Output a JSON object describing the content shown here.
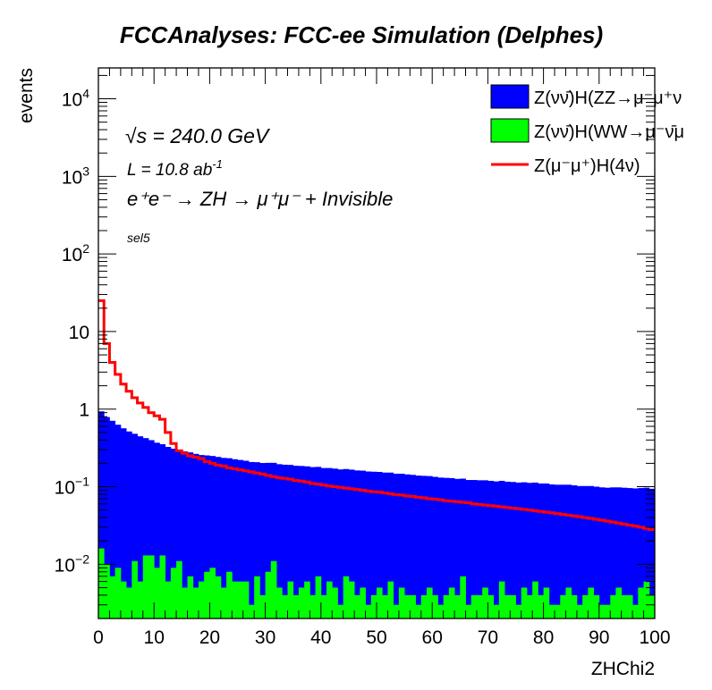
{
  "title": "FCCAnalyses: FCC-ee Simulation (Delphes)",
  "annotations": {
    "sqrt_s_symbol": "√s",
    "sqrt_s_value": " = 240.0 GeV",
    "lumi_text": "L = 10.8 ab",
    "lumi_exp": "-1",
    "process_text": "e⁺e⁻ → ZH → μ⁺μ⁻ + Invisible",
    "selection": "sel5"
  },
  "chart_data": {
    "type": "bar",
    "stacked": true,
    "xlabel": "ZHChi2",
    "ylabel": "events",
    "xlim": [
      0,
      100
    ],
    "ylim": [
      0.002,
      25000
    ],
    "yscale": "log",
    "grid": false,
    "legend_position": "top-right",
    "x_ticks": [
      "0",
      "10",
      "20",
      "30",
      "40",
      "50",
      "60",
      "70",
      "80",
      "90",
      "100"
    ],
    "y_ticks": [
      {
        "base": "10",
        "exp": "−2"
      },
      {
        "base": "10",
        "exp": "−1"
      },
      {
        "base": "1",
        "exp": ""
      },
      {
        "base": "10",
        "exp": ""
      },
      {
        "base": "10",
        "exp": "2"
      },
      {
        "base": "10",
        "exp": "3"
      },
      {
        "base": "10",
        "exp": "4"
      }
    ],
    "bin_width": 1,
    "series": [
      {
        "name": "Z(νν̄)H(ZZ→μ⁻μ⁺ν",
        "kind": "stack",
        "color": "#0000ff",
        "values": [
          0.92,
          0.78,
          0.7,
          0.62,
          0.56,
          0.51,
          0.47,
          0.44,
          0.41,
          0.385,
          0.36,
          0.34,
          0.32,
          0.3,
          0.29,
          0.28,
          0.27,
          0.26,
          0.25,
          0.245,
          0.24,
          0.235,
          0.23,
          0.225,
          0.22,
          0.215,
          0.21,
          0.205,
          0.2,
          0.198,
          0.195,
          0.192,
          0.19,
          0.188,
          0.185,
          0.182,
          0.18,
          0.177,
          0.175,
          0.173,
          0.17,
          0.168,
          0.166,
          0.164,
          0.162,
          0.16,
          0.158,
          0.156,
          0.154,
          0.152,
          0.15,
          0.148,
          0.146,
          0.144,
          0.142,
          0.14,
          0.138,
          0.136,
          0.134,
          0.132,
          0.13,
          0.128,
          0.126,
          0.124,
          0.122,
          0.12,
          0.119,
          0.118,
          0.117,
          0.116,
          0.115,
          0.114,
          0.113,
          0.112,
          0.111,
          0.11,
          0.109,
          0.108,
          0.107,
          0.106,
          0.105,
          0.104,
          0.103,
          0.102,
          0.101,
          0.1,
          0.099,
          0.098,
          0.097,
          0.096,
          0.095,
          0.094,
          0.094,
          0.093,
          0.093,
          0.092,
          0.092,
          0.091,
          0.091,
          0.09
        ]
      },
      {
        "name": "Z(νν̄)H(WW→μ⁻ν̄μ",
        "kind": "stack",
        "color": "#00ff00",
        "values": [
          0.016,
          0.01,
          0.007,
          0.009,
          0.006,
          0.005,
          0.011,
          0.006,
          0.013,
          0.013,
          0.009,
          0.013,
          0.006,
          0.009,
          0.011,
          0.005,
          0.007,
          0.005,
          0.006,
          0.008,
          0.009,
          0.007,
          0.005,
          0.008,
          0.006,
          0.006,
          0.006,
          0.003,
          0.007,
          0.004,
          0.008,
          0.011,
          0.005,
          0.004,
          0.006,
          0.004,
          0.005,
          0.006,
          0.004,
          0.007,
          0.004,
          0.006,
          0.005,
          0.003,
          0.007,
          0.006,
          0.004,
          0.005,
          0.003,
          0.004,
          0.005,
          0.004,
          0.006,
          0.003,
          0.005,
          0.004,
          0.004,
          0.003,
          0.004,
          0.005,
          0.004,
          0.003,
          0.004,
          0.005,
          0.004,
          0.007,
          0.003,
          0.004,
          0.004,
          0.005,
          0.004,
          0.003,
          0.006,
          0.004,
          0.004,
          0.003,
          0.005,
          0.004,
          0.006,
          0.004,
          0.005,
          0.003,
          0.003,
          0.004,
          0.005,
          0.004,
          0.003,
          0.004,
          0.005,
          0.004,
          0.003,
          0.003,
          0.004,
          0.005,
          0.004,
          0.004,
          0.003,
          0.005,
          0.006,
          0.004
        ]
      },
      {
        "name": "Z(μ⁻μ⁺)H(4ν)",
        "kind": "line",
        "color": "#ff0000",
        "values": [
          25,
          7,
          4,
          2.8,
          2.1,
          1.7,
          1.4,
          1.2,
          1.05,
          0.9,
          0.82,
          0.74,
          0.5,
          0.36,
          0.29,
          0.27,
          0.25,
          0.24,
          0.23,
          0.21,
          0.2,
          0.19,
          0.185,
          0.175,
          0.17,
          0.165,
          0.16,
          0.155,
          0.15,
          0.145,
          0.14,
          0.135,
          0.13,
          0.128,
          0.125,
          0.12,
          0.118,
          0.115,
          0.11,
          0.108,
          0.105,
          0.102,
          0.1,
          0.098,
          0.096,
          0.094,
          0.092,
          0.09,
          0.088,
          0.086,
          0.085,
          0.083,
          0.081,
          0.079,
          0.078,
          0.076,
          0.075,
          0.073,
          0.072,
          0.07,
          0.069,
          0.068,
          0.066,
          0.065,
          0.064,
          0.063,
          0.062,
          0.06,
          0.059,
          0.058,
          0.057,
          0.056,
          0.055,
          0.054,
          0.053,
          0.052,
          0.051,
          0.05,
          0.049,
          0.048,
          0.047,
          0.046,
          0.045,
          0.044,
          0.043,
          0.042,
          0.041,
          0.04,
          0.039,
          0.038,
          0.037,
          0.036,
          0.035,
          0.034,
          0.033,
          0.032,
          0.031,
          0.03,
          0.029,
          0.028
        ]
      }
    ]
  }
}
